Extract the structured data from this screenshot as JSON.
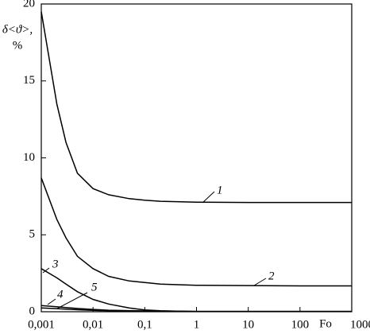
{
  "chart_data": {
    "type": "line",
    "ylabel": "δ<ϑ>,",
    "yunit": "%",
    "xlabel": "Fo",
    "x": [
      0.001,
      0.002,
      0.003,
      0.005,
      0.01,
      0.02,
      0.05,
      0.1,
      0.2,
      0.5,
      1,
      10,
      100,
      1000
    ],
    "series": [
      {
        "name": "1",
        "color": "#000000",
        "values": [
          19.5,
          13.5,
          11,
          9.0,
          8.0,
          7.6,
          7.35,
          7.25,
          7.18,
          7.14,
          7.12,
          7.1,
          7.1,
          7.1
        ]
      },
      {
        "name": "2",
        "color": "#000000",
        "values": [
          8.7,
          6.0,
          4.8,
          3.6,
          2.8,
          2.3,
          2.0,
          1.9,
          1.8,
          1.75,
          1.72,
          1.7,
          1.68,
          1.68
        ]
      },
      {
        "name": "3",
        "color": "#000000",
        "values": [
          2.8,
          2.2,
          1.8,
          1.3,
          0.8,
          0.5,
          0.25,
          0.12,
          0.06,
          0.03,
          0.02,
          0.02,
          0.02,
          0.02
        ]
      },
      {
        "name": "4",
        "color": "#000000",
        "values": [
          0.4,
          0.32,
          0.27,
          0.21,
          0.15,
          0.1,
          0.07,
          0.05,
          0.04,
          0.03,
          0.02,
          0.02,
          0.02,
          0.02
        ]
      },
      {
        "name": "5",
        "color": "#000000",
        "values": [
          0.25,
          0.2,
          0.17,
          0.13,
          0.09,
          0.06,
          0.04,
          0.03,
          0.02,
          0.02,
          0.01,
          0.01,
          0.01,
          0.01
        ]
      }
    ],
    "xscale": "log",
    "xlim": [
      0.001,
      1000
    ],
    "xticks": [
      {
        "value": 0.001,
        "label": "0,001"
      },
      {
        "value": 0.01,
        "label": "0,01"
      },
      {
        "value": 0.1,
        "label": "0,1"
      },
      1,
      10,
      100,
      1000
    ],
    "ylim": [
      0,
      20
    ],
    "yticks": [
      0,
      5,
      10,
      15,
      20
    ],
    "grid": false
  }
}
